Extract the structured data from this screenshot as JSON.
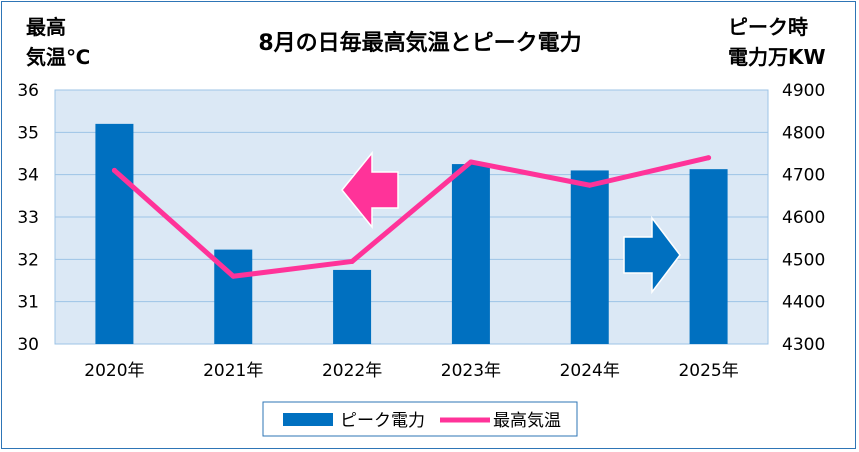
{
  "chart_data": {
    "type": "bar+line",
    "title": "8月の日毎最高気温とピーク電力",
    "categories": [
      "2020年",
      "2021年",
      "2022年",
      "2023年",
      "2024年",
      "2025年"
    ],
    "series": [
      {
        "name": "ピーク電力",
        "type": "bar",
        "axis": "right",
        "values": [
          4820,
          4523,
          4475,
          4725,
          4710,
          4713
        ]
      },
      {
        "name": "最高気温",
        "type": "line",
        "axis": "left",
        "values": [
          34.1,
          31.6,
          31.95,
          34.3,
          33.75,
          34.4
        ]
      }
    ],
    "y_left": {
      "label_line1": "最高",
      "label_line2": "気温℃",
      "min": 30,
      "max": 36,
      "ticks": [
        30,
        31,
        32,
        33,
        34,
        35,
        36
      ]
    },
    "y_right": {
      "label_line1": "ピーク時",
      "label_line2": "電力万KW",
      "min": 4300,
      "max": 4900,
      "ticks": [
        4300,
        4400,
        4500,
        4600,
        4700,
        4800,
        4900
      ]
    },
    "grid": true,
    "legend_position": "bottom",
    "colors": {
      "bar": "#0070c0",
      "line": "#ff3399",
      "plot_bg": "#dbe8f5",
      "grid": "#9dc3e6",
      "arrow_left": "#ff3399",
      "arrow_right": "#0070c0"
    }
  }
}
